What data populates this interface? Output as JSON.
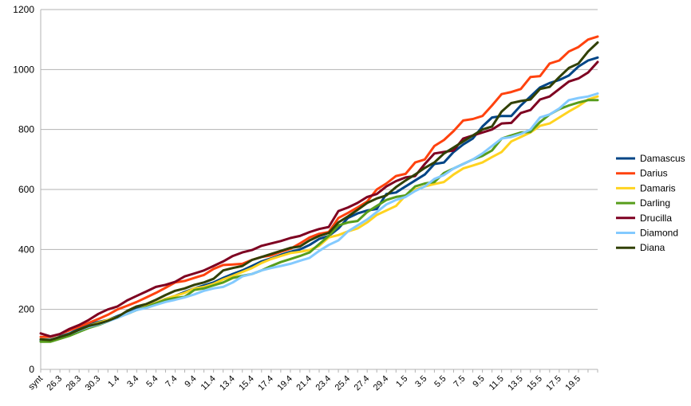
{
  "chart_data": {
    "type": "line",
    "title": "",
    "xlabel": "",
    "ylabel": "",
    "ylim": [
      0,
      1200
    ],
    "yticks": [
      0,
      200,
      400,
      600,
      800,
      1000,
      1200
    ],
    "grid": "horizontal",
    "legend_position": "right",
    "x_tick_labels": [
      "synt",
      "26.3",
      "28.3",
      "30.3",
      "1.4",
      "3.4",
      "5.4",
      "7.4",
      "9.4",
      "11.4",
      "13.4",
      "15.4",
      "17.4",
      "19.4",
      "21.4",
      "23.4",
      "25.4",
      "27.4",
      "29.4",
      "1.5",
      "3.5",
      "5.5",
      "7.5",
      "9.5",
      "11.5",
      "13.5",
      "15.5",
      "17.5",
      "19.5"
    ],
    "x_tick_every": 2,
    "series": [
      {
        "name": "Damascus",
        "color": "#004586",
        "values": [
          95,
          95,
          110,
          120,
          135,
          150,
          158,
          165,
          178,
          190,
          205,
          212,
          222,
          235,
          245,
          258,
          270,
          280,
          290,
          305,
          318,
          330,
          345,
          360,
          370,
          382,
          392,
          400,
          415,
          435,
          445,
          470,
          505,
          520,
          530,
          535,
          585,
          590,
          610,
          630,
          650,
          685,
          690,
          725,
          750,
          770,
          810,
          840,
          845,
          845,
          880,
          910,
          940,
          955,
          965,
          980,
          1010,
          1030,
          1040
        ]
      },
      {
        "name": "Darius",
        "color": "#ff420e",
        "values": [
          108,
          108,
          118,
          130,
          142,
          155,
          168,
          182,
          200,
          212,
          225,
          240,
          255,
          272,
          290,
          295,
          305,
          315,
          335,
          348,
          350,
          352,
          365,
          375,
          380,
          392,
          402,
          420,
          440,
          452,
          458,
          505,
          522,
          540,
          560,
          600,
          620,
          645,
          652,
          690,
          700,
          745,
          765,
          795,
          830,
          835,
          845,
          880,
          918,
          925,
          935,
          975,
          978,
          1020,
          1030,
          1060,
          1075,
          1100,
          1110
        ]
      },
      {
        "name": "Damaris",
        "color": "#ffd320",
        "values": [
          100,
          100,
          108,
          118,
          130,
          145,
          155,
          165,
          175,
          185,
          198,
          210,
          222,
          235,
          245,
          255,
          270,
          275,
          285,
          300,
          312,
          325,
          338,
          355,
          368,
          378,
          388,
          392,
          398,
          412,
          440,
          448,
          460,
          470,
          490,
          515,
          530,
          545,
          580,
          600,
          610,
          618,
          625,
          650,
          670,
          680,
          690,
          708,
          725,
          760,
          775,
          790,
          812,
          820,
          840,
          860,
          878,
          900,
          910
        ]
      },
      {
        "name": "Darling",
        "color": "#579d1c",
        "values": [
          92,
          92,
          102,
          112,
          125,
          138,
          148,
          160,
          175,
          185,
          198,
          208,
          220,
          232,
          238,
          242,
          265,
          270,
          280,
          290,
          305,
          312,
          318,
          330,
          345,
          358,
          368,
          378,
          390,
          418,
          445,
          480,
          490,
          495,
          525,
          545,
          565,
          575,
          580,
          610,
          620,
          625,
          655,
          670,
          685,
          700,
          712,
          730,
          770,
          780,
          790,
          792,
          825,
          850,
          868,
          880,
          890,
          898,
          898
        ]
      },
      {
        "name": "Drucilla",
        "color": "#7e0021",
        "values": [
          120,
          110,
          118,
          135,
          148,
          165,
          185,
          200,
          210,
          230,
          245,
          260,
          275,
          282,
          292,
          310,
          320,
          330,
          345,
          360,
          378,
          390,
          398,
          412,
          420,
          428,
          438,
          445,
          458,
          468,
          475,
          528,
          540,
          555,
          575,
          585,
          610,
          628,
          640,
          645,
          685,
          720,
          725,
          730,
          770,
          780,
          790,
          800,
          820,
          822,
          855,
          865,
          900,
          910,
          935,
          960,
          970,
          990,
          1025
        ]
      },
      {
        "name": "Diamond",
        "color": "#83caff",
        "values": [
          100,
          100,
          108,
          118,
          130,
          142,
          150,
          160,
          172,
          185,
          198,
          205,
          215,
          225,
          232,
          240,
          250,
          262,
          270,
          275,
          290,
          310,
          318,
          330,
          338,
          345,
          352,
          362,
          372,
          395,
          415,
          430,
          460,
          480,
          500,
          525,
          550,
          565,
          575,
          595,
          610,
          635,
          648,
          670,
          685,
          700,
          720,
          745,
          770,
          775,
          785,
          800,
          840,
          850,
          870,
          898,
          905,
          910,
          920
        ]
      },
      {
        "name": "Diana",
        "color": "#314004",
        "values": [
          100,
          98,
          108,
          118,
          132,
          145,
          152,
          162,
          175,
          195,
          210,
          218,
          232,
          248,
          262,
          270,
          282,
          290,
          302,
          330,
          338,
          345,
          365,
          375,
          385,
          395,
          405,
          410,
          430,
          445,
          455,
          490,
          510,
          532,
          555,
          570,
          580,
          608,
          630,
          650,
          672,
          690,
          720,
          740,
          760,
          780,
          800,
          810,
          860,
          888,
          895,
          900,
          935,
          942,
          975,
          1005,
          1020,
          1060,
          1090
        ]
      }
    ]
  }
}
